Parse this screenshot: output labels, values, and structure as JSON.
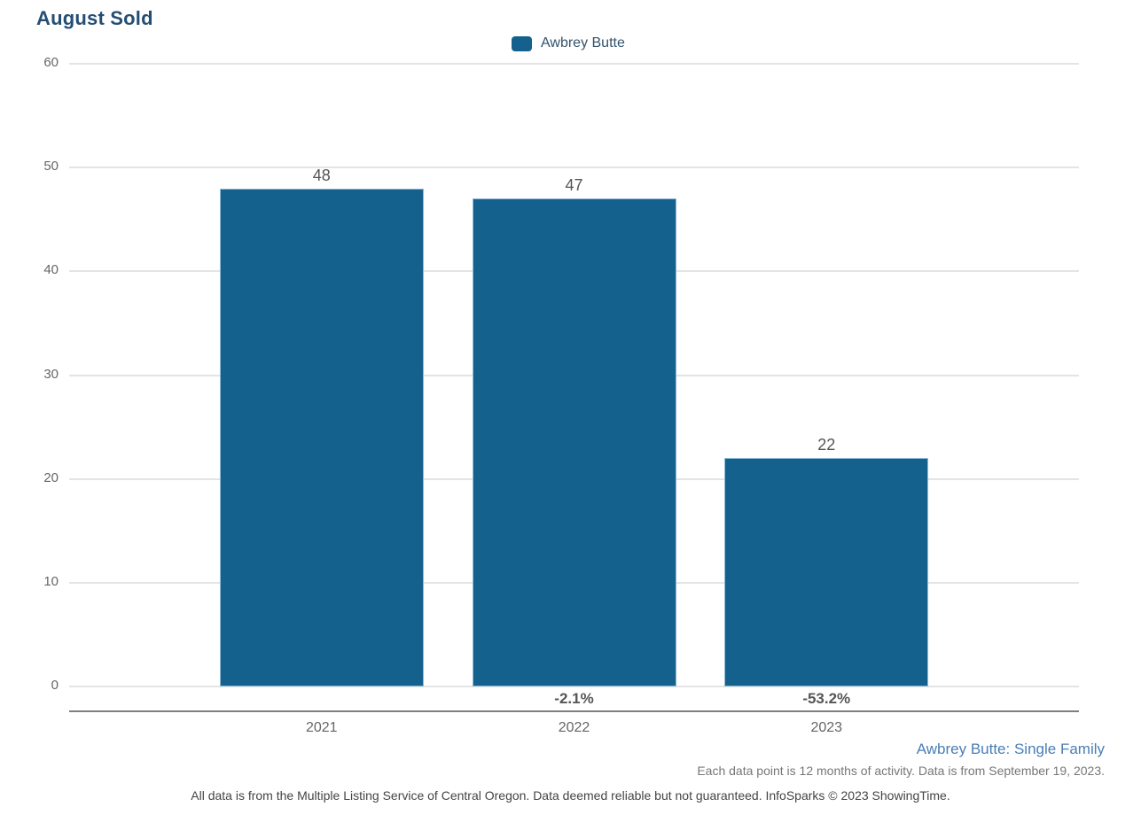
{
  "page_title": "August Sold",
  "legend": {
    "label": "Awbrey Butte"
  },
  "chart_data": {
    "type": "bar",
    "title": "August Sold",
    "categories": [
      "2021",
      "2022",
      "2023"
    ],
    "values": [
      48,
      47,
      22
    ],
    "pct_change_labels": [
      "",
      "-2.1%",
      "-53.2%"
    ],
    "legend": [
      "Awbrey Butte"
    ],
    "xlabel": "",
    "ylabel": "",
    "ylim": [
      0,
      60
    ],
    "yticks": [
      0,
      10,
      20,
      30,
      40,
      50,
      60
    ],
    "grid": true,
    "legend_position": "top-center",
    "bar_color": "#15618E",
    "bar_border_color": "#8FB9D9"
  },
  "footer": {
    "series_caption": "Awbrey Butte: Single Family",
    "activity_note": "Each data point is 12 months of activity. Data is from September 19, 2023.",
    "disclaimer": "All data is from the Multiple Listing Service of Central Oregon. Data deemed reliable but not guaranteed. InfoSparks © 2023 ShowingTime."
  },
  "colors": {
    "title": "#254E73",
    "bar": "#15618E",
    "footer_caption_blue": "#4A7EB5",
    "axis_label_gray": "#666666",
    "gridline": "#E4E4E4",
    "axis_line": "#7F7F7F"
  }
}
